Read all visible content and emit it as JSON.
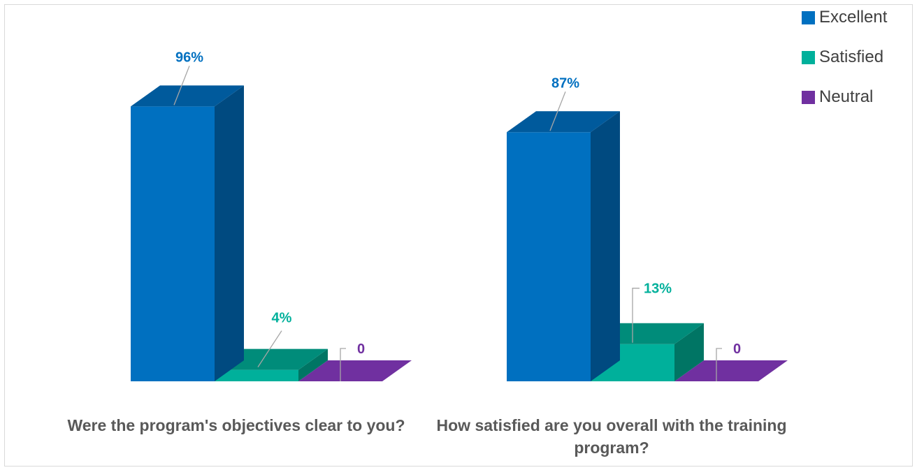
{
  "chart_data": {
    "type": "bar",
    "style": "3d-column",
    "categories": [
      "Were the program's objectives clear to you?",
      "How satisfied are you overall with the training program?"
    ],
    "series": [
      {
        "name": "Excellent",
        "values": [
          96,
          87
        ],
        "labels": [
          "96%",
          "87%"
        ],
        "color": "#0070c0"
      },
      {
        "name": "Satisfied",
        "values": [
          4,
          13
        ],
        "labels": [
          "4%",
          "13%"
        ],
        "color": "#00b09b"
      },
      {
        "name": "Neutral",
        "values": [
          0,
          0
        ],
        "labels": [
          "0",
          "0"
        ],
        "color": "#7030a0"
      }
    ],
    "ylim": [
      0,
      100
    ],
    "grid": false,
    "legend_position": "top-right"
  }
}
